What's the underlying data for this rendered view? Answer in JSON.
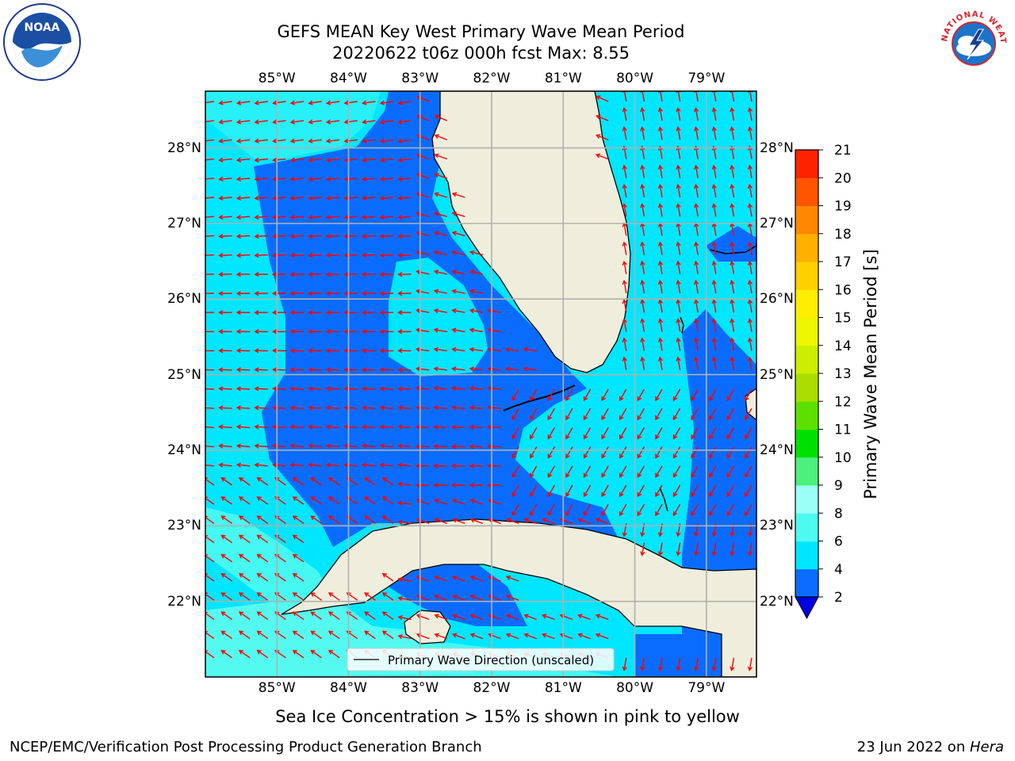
{
  "title": {
    "line1": "GEFS MEAN Key West Primary Wave Mean Period",
    "line2": "20220622 t06z 000h fcst   Max: 8.55"
  },
  "logos": {
    "noaa_text": "NOAA",
    "nws_text": "NATIONAL WEATHER SERVICE"
  },
  "axes": {
    "lon_labels": [
      "85°W",
      "84°W",
      "83°W",
      "82°W",
      "81°W",
      "80°W",
      "79°W"
    ],
    "lat_labels": [
      "28°N",
      "27°N",
      "26°N",
      "25°N",
      "24°N",
      "23°N",
      "22°N"
    ],
    "lon_values": [
      -85,
      -84,
      -83,
      -82,
      -81,
      -80,
      -79
    ],
    "lat_values": [
      28,
      27,
      26,
      25,
      24,
      23,
      22
    ],
    "lon_range": [
      -86.0,
      -78.3
    ],
    "lat_range": [
      21.0,
      28.75
    ],
    "grid": true
  },
  "legend": {
    "entry": "Primary Wave Direction (unscaled)"
  },
  "colorbar": {
    "label": "Primary Wave Mean Period [s]",
    "ticks": [
      "2",
      "4",
      "6",
      "8",
      "9",
      "10",
      "11",
      "12",
      "13",
      "14",
      "15",
      "16",
      "17",
      "18",
      "19",
      "20",
      "21"
    ],
    "colors": [
      "#0a6cff",
      "#00e6ff",
      "#4dfaf0",
      "#9cfff5",
      "#4cf07c",
      "#00e000",
      "#5ce000",
      "#aadd00",
      "#ccee00",
      "#eef500",
      "#ffee00",
      "#ffd000",
      "#ffb000",
      "#ff8800",
      "#ff5500",
      "#ff2200"
    ],
    "extend_color": "#0000e0"
  },
  "colors": {
    "land": "#efeedc",
    "period_2_4": "#0a6cff",
    "period_4_6": "#00e6ff",
    "period_6_8": "#4dfaf0",
    "period_8_9": "#9cfff5",
    "arrow": "#ff0000",
    "grid": "#b0b0b0"
  },
  "notes": {
    "sea_ice": "Sea Ice Concentration > 15% is shown in pink to yellow"
  },
  "footer": {
    "left": "NCEP/EMC/Verification Post Processing Product Generation Branch",
    "right_prefix": "23 Jun 2022 on ",
    "right_host": "Hera"
  }
}
